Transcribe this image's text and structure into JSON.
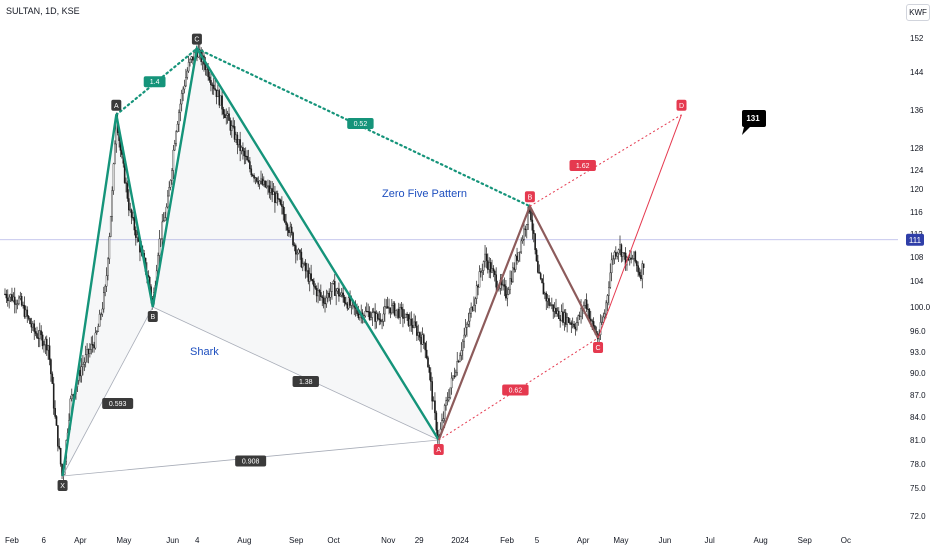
{
  "header": {
    "symbol_line": "SULTAN, 1D, KSE",
    "currency": "KWF"
  },
  "chart_data": {
    "type": "candlestick",
    "yticks": [
      152,
      144,
      136,
      128,
      124,
      120,
      116,
      112,
      108,
      104,
      100.0,
      96.0,
      93.0,
      90.0,
      87.0,
      84.0,
      81.0,
      78.0,
      75.0,
      72.0
    ],
    "ytick_labels": [
      "152",
      "144",
      "136",
      "128",
      "124",
      "120",
      "116",
      "112",
      "108",
      "104",
      "100.0",
      "96.0",
      "93.0",
      "90.0",
      "87.0",
      "84.0",
      "81.0",
      "78.0",
      "75.0",
      "72.0"
    ],
    "x_labels": [
      "Feb",
      "6",
      "Apr",
      "May",
      "Jun",
      "4",
      "Aug",
      "Sep",
      "Oct",
      "Nov",
      "29",
      "2024",
      "Feb",
      "5",
      "Apr",
      "May",
      "Jun",
      "Jul",
      "Aug",
      "Sep",
      "Oc"
    ],
    "x_label_days": [
      0,
      38,
      72,
      116,
      168,
      198,
      242,
      296,
      336,
      392,
      427,
      465,
      516,
      552,
      596,
      634,
      681,
      729,
      780,
      826,
      871
    ],
    "current_price": {
      "label": "111",
      "value": 111
    },
    "price_series_note": "",
    "price_anchors": [
      [
        0,
        102
      ],
      [
        15,
        101
      ],
      [
        30,
        96
      ],
      [
        45,
        94
      ],
      [
        52,
        84
      ],
      [
        60,
        76
      ],
      [
        68,
        86
      ],
      [
        80,
        91
      ],
      [
        95,
        95
      ],
      [
        105,
        103
      ],
      [
        112,
        120
      ],
      [
        116,
        135
      ],
      [
        120,
        128
      ],
      [
        130,
        116
      ],
      [
        140,
        110
      ],
      [
        150,
        104
      ],
      [
        154,
        100
      ],
      [
        160,
        110
      ],
      [
        170,
        118
      ],
      [
        178,
        132
      ],
      [
        185,
        140
      ],
      [
        192,
        146
      ],
      [
        200,
        149
      ],
      [
        210,
        145
      ],
      [
        220,
        140
      ],
      [
        232,
        134
      ],
      [
        245,
        128
      ],
      [
        256,
        124
      ],
      [
        268,
        121
      ],
      [
        280,
        119
      ],
      [
        292,
        115
      ],
      [
        302,
        110
      ],
      [
        312,
        106
      ],
      [
        322,
        103
      ],
      [
        332,
        101
      ],
      [
        342,
        103
      ],
      [
        355,
        101
      ],
      [
        368,
        99
      ],
      [
        378,
        99
      ],
      [
        390,
        98
      ],
      [
        400,
        100
      ],
      [
        412,
        99
      ],
      [
        425,
        97
      ],
      [
        438,
        94
      ],
      [
        448,
        84
      ],
      [
        452,
        81
      ],
      [
        460,
        86
      ],
      [
        470,
        91
      ],
      [
        480,
        96
      ],
      [
        490,
        102
      ],
      [
        500,
        108
      ],
      [
        512,
        104
      ],
      [
        522,
        102
      ],
      [
        530,
        106
      ],
      [
        540,
        112
      ],
      [
        547,
        117
      ],
      [
        555,
        105
      ],
      [
        565,
        101
      ],
      [
        575,
        99
      ],
      [
        585,
        98
      ],
      [
        595,
        97
      ],
      [
        605,
        101
      ],
      [
        612,
        97
      ],
      [
        618,
        95
      ],
      [
        625,
        99
      ],
      [
        633,
        108
      ],
      [
        640,
        110
      ],
      [
        648,
        107
      ],
      [
        655,
        108
      ],
      [
        662,
        105
      ],
      [
        667,
        108
      ]
    ],
    "harmonic_patterns": [
      {
        "name": "Shark",
        "color": "#15947a",
        "points": [
          {
            "label": "X",
            "day": 60,
            "value": 76.5
          },
          {
            "label": "A",
            "day": 116,
            "value": 135
          },
          {
            "label": "B",
            "day": 154,
            "value": 100
          },
          {
            "label": "C",
            "day": 200,
            "value": 149.5
          },
          {
            "label": "A",
            "day": 452,
            "value": 81
          }
        ],
        "ratios": [
          {
            "label": "0.593",
            "between": [
              "X",
              "B"
            ]
          },
          {
            "label": "1.4",
            "between": [
              "A",
              "C"
            ]
          },
          {
            "label": "1.38",
            "between": [
              "B",
              "A2"
            ]
          },
          {
            "label": "0.908",
            "between": [
              "X",
              "A2"
            ]
          }
        ]
      },
      {
        "name": "Zero Five Pattern",
        "color": "#8d5b5b",
        "points": [
          {
            "label": "A",
            "day": 452,
            "value": 81
          },
          {
            "label": "B",
            "day": 547,
            "value": 117
          },
          {
            "label": "C",
            "day": 618,
            "value": 95
          },
          {
            "label": "D",
            "day": 705,
            "value": 135
          }
        ],
        "ratios": [
          {
            "label": "0.52",
            "between": [
              "C",
              "B"
            ]
          },
          {
            "label": "0.62",
            "between": [
              "A",
              "C"
            ]
          },
          {
            "label": "1.62",
            "between": [
              "B",
              "D"
            ]
          }
        ]
      }
    ],
    "target_label": {
      "label": "131",
      "value": 131
    },
    "annotations": [
      {
        "text": "Zero Five Pattern",
        "color": "#1e4fbf"
      },
      {
        "text": "Shark",
        "color": "#1e4fbf"
      }
    ]
  }
}
